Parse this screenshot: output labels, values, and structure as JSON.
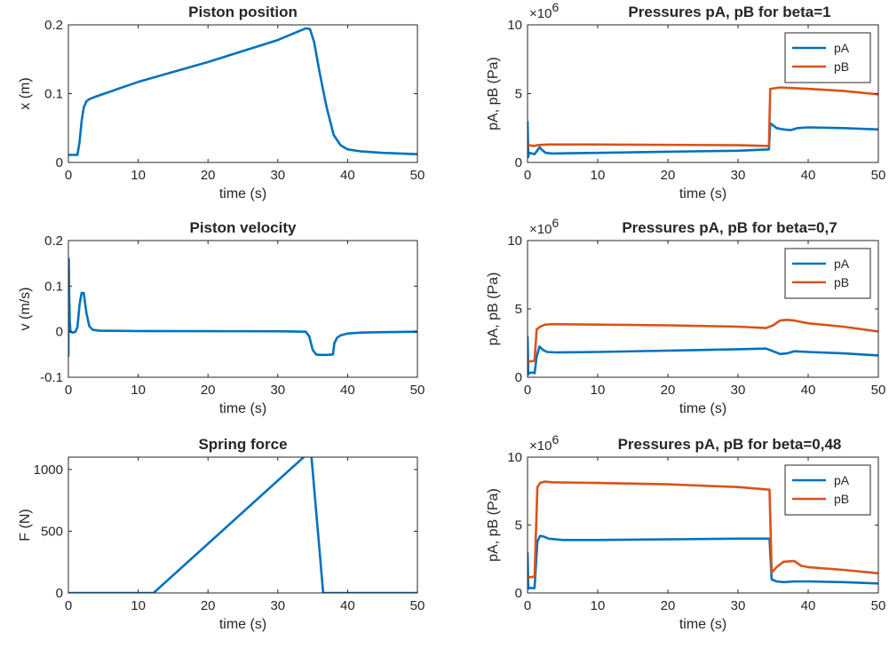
{
  "colors": {
    "pA": "#0072BD",
    "pB": "#D95319",
    "axis": "#262626"
  },
  "chart_data": [
    {
      "id": "p1",
      "type": "line",
      "title": "Piston position",
      "xlabel": "time (s)",
      "ylabel": "x (m)",
      "xlim": [
        0,
        50
      ],
      "ylim": [
        0,
        0.2
      ],
      "xticks": [
        0,
        10,
        20,
        30,
        40,
        50
      ],
      "xtick_labels": [
        "0",
        "10",
        "20",
        "30",
        "40",
        "50"
      ],
      "yticks": [
        0,
        0.1,
        0.2
      ],
      "ytick_labels": [
        "0",
        "0.1",
        "0.2"
      ],
      "exponent": "",
      "legend": [],
      "series": [
        {
          "color": "pA",
          "x": [
            0,
            1.3,
            1.6,
            1.9,
            2.2,
            2.6,
            3.0,
            4.0,
            10,
            20,
            30,
            34.0,
            34.6,
            35.2,
            36.0,
            37.0,
            38.0,
            39.0,
            40.0,
            42.0,
            45.0,
            50.0
          ],
          "y": [
            0.011,
            0.011,
            0.03,
            0.06,
            0.08,
            0.089,
            0.092,
            0.096,
            0.117,
            0.146,
            0.178,
            0.195,
            0.194,
            0.175,
            0.13,
            0.08,
            0.04,
            0.025,
            0.019,
            0.016,
            0.014,
            0.012
          ]
        }
      ]
    },
    {
      "id": "v1",
      "type": "line",
      "title": "Piston velocity",
      "xlabel": "time (s)",
      "ylabel": "v (m/s)",
      "xlim": [
        0,
        50
      ],
      "ylim": [
        -0.1,
        0.2
      ],
      "xticks": [
        0,
        10,
        20,
        30,
        40,
        50
      ],
      "xtick_labels": [
        "0",
        "10",
        "20",
        "30",
        "40",
        "50"
      ],
      "yticks": [
        -0.1,
        0,
        0.1,
        0.2
      ],
      "ytick_labels": [
        "-0.1",
        "0",
        "0.1",
        "0.2"
      ],
      "exponent": "",
      "legend": [],
      "series": [
        {
          "color": "pA",
          "x": [
            0,
            0.05,
            0.12,
            0.2,
            0.3,
            0.6,
            1.0,
            1.3,
            1.6,
            1.9,
            2.2,
            2.6,
            3.0,
            3.5,
            4.5,
            10,
            20,
            30,
            34.0,
            34.5,
            35.0,
            35.5,
            36.0,
            37.0,
            37.9,
            38.1,
            38.5,
            39.0,
            40.0,
            42.0,
            45.0,
            50.0
          ],
          "y": [
            -0.055,
            0.16,
            0.08,
            0.02,
            0.0,
            -0.002,
            0.0,
            0.01,
            0.06,
            0.085,
            0.085,
            0.04,
            0.012,
            0.004,
            0.002,
            0.0015,
            0.0012,
            0.001,
            0.0,
            -0.01,
            -0.04,
            -0.05,
            -0.051,
            -0.051,
            -0.05,
            -0.025,
            -0.013,
            -0.008,
            -0.004,
            -0.002,
            -0.001,
            0.0
          ]
        }
      ]
    },
    {
      "id": "f1",
      "type": "line",
      "title": "Spring force",
      "xlabel": "time (s)",
      "ylabel": "F (N)",
      "xlim": [
        0,
        50
      ],
      "ylim": [
        0,
        1100
      ],
      "xticks": [
        0,
        10,
        20,
        30,
        40,
        50
      ],
      "xtick_labels": [
        "0",
        "10",
        "20",
        "30",
        "40",
        "50"
      ],
      "yticks": [
        0,
        500,
        1000
      ],
      "ytick_labels": [
        "0",
        "500",
        "1000"
      ],
      "exponent": "",
      "legend": [],
      "series": [
        {
          "color": "pA",
          "x": [
            0,
            12.2,
            34.3,
            34.8,
            36.5,
            50
          ],
          "y": [
            0,
            0,
            1130,
            1120,
            0,
            0
          ]
        }
      ]
    },
    {
      "id": "pr1",
      "type": "line",
      "title": "Pressures pA, pB for beta=1",
      "xlabel": "time (s)",
      "ylabel": "pA, pB (Pa)",
      "xlim": [
        0,
        50
      ],
      "ylim": [
        0,
        10
      ],
      "xticks": [
        0,
        10,
        20,
        30,
        40,
        50
      ],
      "xtick_labels": [
        "0",
        "10",
        "20",
        "30",
        "40",
        "50"
      ],
      "yticks": [
        0,
        5,
        10
      ],
      "ytick_labels": [
        "0",
        "5",
        "10"
      ],
      "exponent": "6",
      "legend": [
        {
          "label": "pA",
          "color": "pA"
        },
        {
          "label": "pB",
          "color": "pB"
        }
      ],
      "series": [
        {
          "name": "pA",
          "color": "pA",
          "x": [
            0,
            0.1,
            0.15,
            0.3,
            0.6,
            1.0,
            1.3,
            1.7,
            2.1,
            2.6,
            3.5,
            10,
            20,
            30,
            34.4,
            34.6,
            35.5,
            36.5,
            37.5,
            38.5,
            40,
            45,
            50
          ],
          "y": [
            3.0,
            0.4,
            0.6,
            0.7,
            0.65,
            0.6,
            0.8,
            1.1,
            0.9,
            0.7,
            0.65,
            0.7,
            0.78,
            0.85,
            0.95,
            2.85,
            2.5,
            2.4,
            2.35,
            2.5,
            2.55,
            2.5,
            2.4
          ]
        },
        {
          "name": "pB",
          "color": "pB",
          "x": [
            0,
            0.1,
            0.15,
            1.0,
            1.3,
            2.0,
            3.0,
            10,
            20,
            30,
            34.4,
            34.6,
            36.0,
            38.0,
            40,
            45,
            50
          ],
          "y": [
            1.3,
            1.2,
            1.25,
            1.2,
            1.25,
            1.28,
            1.3,
            1.3,
            1.28,
            1.25,
            1.2,
            5.35,
            5.45,
            5.4,
            5.35,
            5.2,
            4.95
          ]
        }
      ]
    },
    {
      "id": "pr2",
      "type": "line",
      "title": "Pressures pA, pB for beta=0,7",
      "xlabel": "time (s)",
      "ylabel": "pA, pB (Pa)",
      "xlim": [
        0,
        50
      ],
      "ylim": [
        0,
        10
      ],
      "xticks": [
        0,
        10,
        20,
        30,
        40,
        50
      ],
      "xtick_labels": [
        "0",
        "10",
        "20",
        "30",
        "40",
        "50"
      ],
      "yticks": [
        0,
        5,
        10
      ],
      "ytick_labels": [
        "0",
        "5",
        "10"
      ],
      "exponent": "6",
      "legend": [
        {
          "label": "pA",
          "color": "pA"
        },
        {
          "label": "pB",
          "color": "pB"
        }
      ],
      "series": [
        {
          "name": "pA",
          "color": "pA",
          "x": [
            0,
            0.1,
            0.2,
            0.6,
            1.0,
            1.3,
            1.7,
            2.2,
            2.8,
            4.0,
            10,
            20,
            30,
            34.0,
            35.0,
            36.0,
            37.0,
            38.0,
            40,
            45,
            50
          ],
          "y": [
            3.0,
            0.2,
            0.3,
            0.35,
            0.3,
            1.5,
            2.25,
            2.0,
            1.85,
            1.82,
            1.85,
            1.95,
            2.05,
            2.1,
            1.9,
            1.7,
            1.75,
            1.9,
            1.85,
            1.75,
            1.6
          ]
        },
        {
          "name": "pB",
          "color": "pB",
          "x": [
            0,
            0.1,
            0.2,
            1.0,
            1.3,
            1.8,
            2.5,
            3.5,
            10,
            20,
            30,
            34.0,
            35.0,
            36.0,
            37.0,
            38.0,
            40,
            45,
            50
          ],
          "y": [
            1.2,
            1.1,
            1.15,
            1.2,
            3.5,
            3.7,
            3.85,
            3.88,
            3.85,
            3.8,
            3.7,
            3.6,
            3.8,
            4.15,
            4.2,
            4.15,
            3.95,
            3.7,
            3.35
          ]
        }
      ]
    },
    {
      "id": "pr3",
      "type": "line",
      "title": "Pressures pA, pB for beta=0,48",
      "xlabel": "time (s)",
      "ylabel": "pA, pB (Pa)",
      "xlim": [
        0,
        50
      ],
      "ylim": [
        0,
        10
      ],
      "xticks": [
        0,
        10,
        20,
        30,
        40,
        50
      ],
      "xtick_labels": [
        "0",
        "10",
        "20",
        "30",
        "40",
        "50"
      ],
      "yticks": [
        0,
        5,
        10
      ],
      "ytick_labels": [
        "0",
        "5",
        "10"
      ],
      "exponent": "6",
      "legend": [
        {
          "label": "pA",
          "color": "pA"
        },
        {
          "label": "pB",
          "color": "pB"
        }
      ],
      "series": [
        {
          "name": "pA",
          "color": "pA",
          "x": [
            0,
            0.1,
            0.2,
            0.6,
            1.0,
            1.4,
            1.8,
            2.3,
            3.0,
            5.0,
            10,
            20,
            30,
            34.5,
            34.8,
            35.5,
            36.5,
            38.0,
            40,
            45,
            50
          ],
          "y": [
            3.0,
            0.3,
            0.4,
            0.35,
            0.35,
            3.8,
            4.2,
            4.15,
            4.0,
            3.9,
            3.9,
            3.95,
            4.0,
            4.0,
            1.0,
            0.85,
            0.8,
            0.85,
            0.85,
            0.8,
            0.7
          ]
        },
        {
          "name": "pB",
          "color": "pB",
          "x": [
            0,
            0.1,
            0.2,
            1.0,
            1.4,
            1.8,
            2.5,
            3.5,
            10,
            20,
            30,
            34.5,
            34.8,
            35.5,
            36.5,
            38.0,
            39.0,
            40,
            45,
            50
          ],
          "y": [
            1.2,
            1.1,
            1.15,
            1.2,
            7.8,
            8.1,
            8.2,
            8.15,
            8.1,
            8.0,
            7.8,
            7.6,
            1.5,
            1.9,
            2.3,
            2.35,
            2.0,
            1.9,
            1.7,
            1.45
          ]
        }
      ]
    }
  ]
}
